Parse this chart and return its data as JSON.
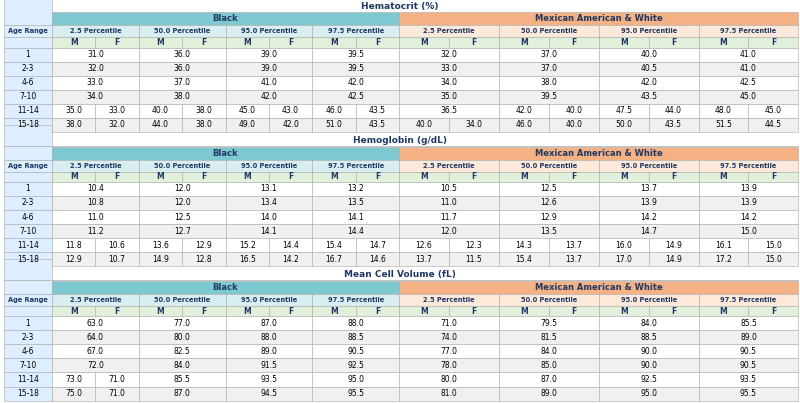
{
  "title_hematocrit": "Hematocrit (%)",
  "title_hemoglobin": "Hemoglobin (g/dL)",
  "title_mcv": "Mean Cell Volume (fL)",
  "group1": "Black",
  "group2": "Mexican American & White",
  "percentile_headers": [
    "2.5 Percentile",
    "50.0 Percentile",
    "95.0 Percentile",
    "97.5 Percentile"
  ],
  "age_ranges": [
    "1",
    "2-3",
    "4-6",
    "7-10",
    "11-14",
    "15-18"
  ],
  "hematocrit": {
    "black": {
      "p2_5": [
        [
          31.0,
          null
        ],
        [
          32.0,
          null
        ],
        [
          33.0,
          null
        ],
        [
          34.0,
          null
        ],
        [
          35.0,
          33.0
        ],
        [
          38.0,
          32.0
        ]
      ],
      "p50": [
        [
          36.0,
          null
        ],
        [
          36.0,
          null
        ],
        [
          37.0,
          null
        ],
        [
          38.0,
          null
        ],
        [
          40.0,
          38.0
        ],
        [
          44.0,
          38.0
        ]
      ],
      "p95": [
        [
          39.0,
          null
        ],
        [
          39.0,
          null
        ],
        [
          41.0,
          null
        ],
        [
          42.0,
          null
        ],
        [
          45.0,
          43.0
        ],
        [
          49.0,
          42.0
        ]
      ],
      "p97_5": [
        [
          39.5,
          null
        ],
        [
          39.5,
          null
        ],
        [
          42.0,
          null
        ],
        [
          42.5,
          null
        ],
        [
          46.0,
          43.5
        ],
        [
          51.0,
          43.5
        ]
      ]
    },
    "maw": {
      "p2_5": [
        [
          32.0,
          null
        ],
        [
          33.0,
          null
        ],
        [
          34.0,
          null
        ],
        [
          35.0,
          null
        ],
        [
          36.5,
          null
        ],
        [
          40.0,
          34.0
        ]
      ],
      "p50": [
        [
          37.0,
          null
        ],
        [
          37.0,
          null
        ],
        [
          38.0,
          null
        ],
        [
          39.5,
          null
        ],
        [
          42.0,
          40.0
        ],
        [
          46.0,
          40.0
        ]
      ],
      "p95": [
        [
          40.0,
          null
        ],
        [
          40.5,
          null
        ],
        [
          42.0,
          null
        ],
        [
          43.5,
          null
        ],
        [
          47.5,
          44.0
        ],
        [
          50.0,
          43.5
        ]
      ],
      "p97_5": [
        [
          41.0,
          null
        ],
        [
          41.0,
          null
        ],
        [
          42.5,
          null
        ],
        [
          45.0,
          null
        ],
        [
          48.0,
          45.0
        ],
        [
          51.5,
          44.5
        ]
      ]
    }
  },
  "hemoglobin": {
    "black": {
      "p2_5": [
        [
          10.4,
          null
        ],
        [
          10.8,
          null
        ],
        [
          11.0,
          null
        ],
        [
          11.2,
          null
        ],
        [
          11.8,
          10.6
        ],
        [
          12.9,
          10.7
        ]
      ],
      "p50": [
        [
          12.0,
          null
        ],
        [
          12.0,
          null
        ],
        [
          12.5,
          null
        ],
        [
          12.7,
          null
        ],
        [
          13.6,
          12.9
        ],
        [
          14.9,
          12.8
        ]
      ],
      "p95": [
        [
          13.1,
          null
        ],
        [
          13.4,
          null
        ],
        [
          14.0,
          null
        ],
        [
          14.1,
          null
        ],
        [
          15.2,
          14.4
        ],
        [
          16.5,
          14.2
        ]
      ],
      "p97_5": [
        [
          13.2,
          null
        ],
        [
          13.5,
          null
        ],
        [
          14.1,
          null
        ],
        [
          14.4,
          null
        ],
        [
          15.4,
          14.7
        ],
        [
          16.7,
          14.6
        ]
      ]
    },
    "maw": {
      "p2_5": [
        [
          10.5,
          null
        ],
        [
          11.0,
          null
        ],
        [
          11.7,
          null
        ],
        [
          12.0,
          null
        ],
        [
          12.6,
          12.3
        ],
        [
          13.7,
          11.5
        ]
      ],
      "p50": [
        [
          12.5,
          null
        ],
        [
          12.6,
          null
        ],
        [
          12.9,
          null
        ],
        [
          13.5,
          null
        ],
        [
          14.3,
          13.7
        ],
        [
          15.4,
          13.7
        ]
      ],
      "p95": [
        [
          13.7,
          null
        ],
        [
          13.9,
          null
        ],
        [
          14.2,
          null
        ],
        [
          14.7,
          null
        ],
        [
          16.0,
          14.9
        ],
        [
          17.0,
          14.9
        ]
      ],
      "p97_5": [
        [
          13.9,
          null
        ],
        [
          13.9,
          null
        ],
        [
          14.2,
          null
        ],
        [
          15.0,
          null
        ],
        [
          16.1,
          15.0
        ],
        [
          17.2,
          15.0
        ]
      ]
    }
  },
  "mcv": {
    "black": {
      "p2_5": [
        [
          63.0,
          null
        ],
        [
          64.0,
          null
        ],
        [
          67.0,
          null
        ],
        [
          72.0,
          null
        ],
        [
          73.0,
          71.0
        ],
        [
          75.0,
          71.0
        ]
      ],
      "p50": [
        [
          77.0,
          null
        ],
        [
          80.0,
          null
        ],
        [
          82.5,
          null
        ],
        [
          84.0,
          null
        ],
        [
          85.5,
          null
        ],
        [
          87.0,
          null
        ]
      ],
      "p95": [
        [
          87.0,
          null
        ],
        [
          88.0,
          null
        ],
        [
          89.0,
          null
        ],
        [
          91.5,
          null
        ],
        [
          93.5,
          null
        ],
        [
          94.5,
          null
        ]
      ],
      "p97_5": [
        [
          88.0,
          null
        ],
        [
          88.5,
          null
        ],
        [
          90.5,
          null
        ],
        [
          92.5,
          null
        ],
        [
          95.0,
          null
        ],
        [
          95.5,
          null
        ]
      ]
    },
    "maw": {
      "p2_5": [
        [
          71.0,
          null
        ],
        [
          74.0,
          null
        ],
        [
          77.0,
          null
        ],
        [
          78.0,
          null
        ],
        [
          80.0,
          null
        ],
        [
          81.0,
          null
        ]
      ],
      "p50": [
        [
          79.5,
          null
        ],
        [
          81.5,
          null
        ],
        [
          84.0,
          null
        ],
        [
          85.0,
          null
        ],
        [
          87.0,
          null
        ],
        [
          89.0,
          null
        ]
      ],
      "p95": [
        [
          84.0,
          null
        ],
        [
          88.5,
          null
        ],
        [
          90.0,
          null
        ],
        [
          90.0,
          null
        ],
        [
          92.5,
          null
        ],
        [
          95.0,
          null
        ]
      ],
      "p97_5": [
        [
          85.5,
          null
        ],
        [
          89.0,
          null
        ],
        [
          90.5,
          null
        ],
        [
          90.5,
          null
        ],
        [
          93.5,
          null
        ],
        [
          95.5,
          null
        ]
      ]
    }
  },
  "color_header_black": "#7EC8D0",
  "color_header_maw": "#F4B183",
  "color_percentile_black": "#D9EEF1",
  "color_percentile_maw": "#FDE9D9",
  "color_mf_row": "#E2EFDA",
  "color_age_col": "#DDEEFF",
  "bg_color": "#FFFFFF"
}
